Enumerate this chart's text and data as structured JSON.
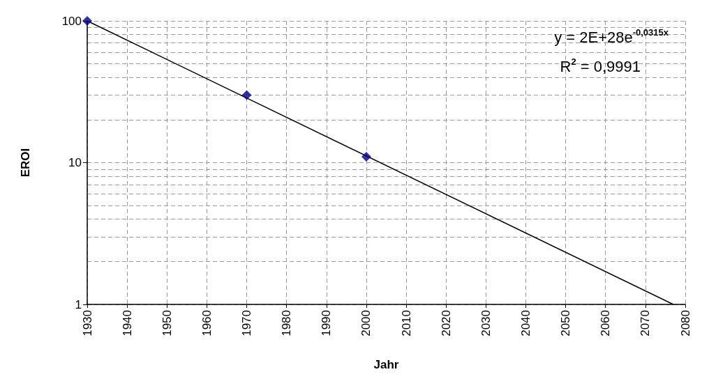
{
  "chart_data": {
    "type": "scatter",
    "xlabel": "Jahr",
    "ylabel": "EROI",
    "x": [
      1930,
      1970,
      2000
    ],
    "series": [
      {
        "color": "#000080",
        "marker": "diamond",
        "values": [
          100,
          30,
          11
        ]
      },
      {
        "type": "line",
        "color": "#000000",
        "marker": "none",
        "x": [
          1930,
          2077
        ],
        "values": [
          100,
          1
        ]
      }
    ],
    "xlim": [
      1930,
      2080
    ],
    "xticks": [
      1930,
      1940,
      1950,
      1960,
      1970,
      1980,
      1990,
      2000,
      2010,
      2020,
      2030,
      2040,
      2050,
      2060,
      2070,
      2080
    ],
    "ylim": [
      1,
      100
    ],
    "yticks": [
      1,
      10,
      100
    ],
    "log": "y",
    "grid": true,
    "annotations": [
      "y = 2E+28e$^{-0,0315x}$",
      "R$^{2}$ = 0,9991"
    ]
  }
}
